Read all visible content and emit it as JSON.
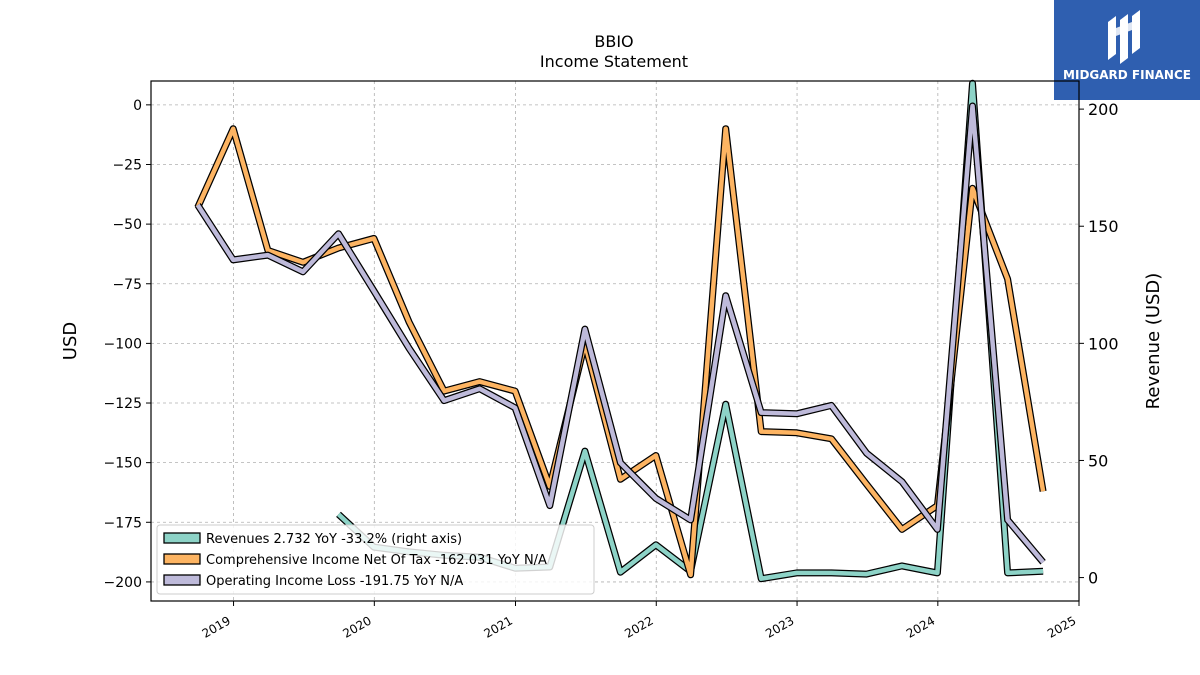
{
  "brand": {
    "name": "MIDGARD FINANCE",
    "color": "#2f5fb0"
  },
  "chart_data": {
    "type": "line",
    "title": "BBIO",
    "subtitle": "Income Statement",
    "ylabel": "USD",
    "y2label": "Revenue (USD)",
    "ylim": [
      -208,
      10
    ],
    "y2lim": [
      -10,
      212
    ],
    "xlim": [
      "2018-06-01",
      "2025-01-01"
    ],
    "yticks": [
      0,
      -25,
      -50,
      -75,
      -100,
      -125,
      -150,
      -175,
      -200
    ],
    "y2ticks": [
      0,
      50,
      100,
      150,
      200
    ],
    "xticks": [
      "2019",
      "2020",
      "2021",
      "2022",
      "2023",
      "2024",
      "2025"
    ],
    "grid": true,
    "legend_position": "lower-left",
    "series": [
      {
        "name": "Revenues  2.732 YoY -33.2% (right axis)",
        "axis": "right",
        "color": "#8dd3c7",
        "points": [
          [
            "2019-09-30",
            27
          ],
          [
            "2019-12-31",
            13
          ],
          [
            "2020-03-31",
            11
          ],
          [
            "2020-06-30",
            9.5
          ],
          [
            "2020-09-30",
            8.7
          ],
          [
            "2020-12-31",
            4
          ],
          [
            "2021-03-31",
            4.5
          ],
          [
            "2021-06-30",
            54
          ],
          [
            "2021-09-30",
            2.3
          ],
          [
            "2021-12-31",
            14
          ],
          [
            "2022-03-31",
            2.7
          ],
          [
            "2022-06-30",
            74
          ],
          [
            "2022-09-30",
            -0.5
          ],
          [
            "2022-12-31",
            2
          ],
          [
            "2023-03-31",
            2
          ],
          [
            "2023-06-30",
            1.5
          ],
          [
            "2023-09-30",
            5
          ],
          [
            "2023-12-31",
            2
          ],
          [
            "2024-03-31",
            211
          ],
          [
            "2024-06-30",
            2
          ],
          [
            "2024-09-30",
            2.73
          ]
        ]
      },
      {
        "name": "Comprehensive Income Net Of Tax  -162.031 YoY N/A",
        "axis": "left",
        "color": "#fdb462",
        "points": [
          [
            "2018-09-30",
            -43
          ],
          [
            "2018-12-31",
            -10
          ],
          [
            "2019-03-31",
            -61
          ],
          [
            "2019-06-30",
            -66
          ],
          [
            "2019-09-30",
            -60
          ],
          [
            "2019-12-31",
            -56
          ],
          [
            "2020-03-31",
            -91
          ],
          [
            "2020-06-30",
            -120
          ],
          [
            "2020-09-30",
            -116
          ],
          [
            "2020-12-31",
            -120
          ],
          [
            "2021-03-31",
            -160
          ],
          [
            "2021-06-30",
            -100
          ],
          [
            "2021-09-30",
            -157
          ],
          [
            "2021-12-31",
            -147
          ],
          [
            "2022-03-31",
            -197
          ],
          [
            "2022-06-30",
            -10
          ],
          [
            "2022-09-30",
            -137
          ],
          [
            "2022-12-31",
            -137.5
          ],
          [
            "2023-03-31",
            -140
          ],
          [
            "2023-06-30",
            -159
          ],
          [
            "2023-09-30",
            -178
          ],
          [
            "2023-12-31",
            -168
          ],
          [
            "2024-03-31",
            -35
          ],
          [
            "2024-06-30",
            -73
          ],
          [
            "2024-09-30",
            -162
          ]
        ]
      },
      {
        "name": "Operating Income Loss  -191.75 YoY N/A",
        "axis": "left",
        "color": "#bebada",
        "points": [
          [
            "2018-09-30",
            -42
          ],
          [
            "2018-12-31",
            -65
          ],
          [
            "2019-03-31",
            -63
          ],
          [
            "2019-06-30",
            -70
          ],
          [
            "2019-09-30",
            -54
          ],
          [
            "2019-12-31",
            -78
          ],
          [
            "2020-03-31",
            -102
          ],
          [
            "2020-06-30",
            -124
          ],
          [
            "2020-09-30",
            -119
          ],
          [
            "2020-12-31",
            -127
          ],
          [
            "2021-03-31",
            -168
          ],
          [
            "2021-06-30",
            -94
          ],
          [
            "2021-09-30",
            -150
          ],
          [
            "2021-12-31",
            -165
          ],
          [
            "2022-03-31",
            -174
          ],
          [
            "2022-06-30",
            -80
          ],
          [
            "2022-09-30",
            -129
          ],
          [
            "2022-12-31",
            -129.5
          ],
          [
            "2023-03-31",
            -126
          ],
          [
            "2023-06-30",
            -146
          ],
          [
            "2023-09-30",
            -158
          ],
          [
            "2023-12-31",
            -178
          ],
          [
            "2024-03-31",
            -0.5
          ],
          [
            "2024-06-30",
            -174
          ],
          [
            "2024-09-30",
            -191.75
          ]
        ]
      }
    ]
  }
}
